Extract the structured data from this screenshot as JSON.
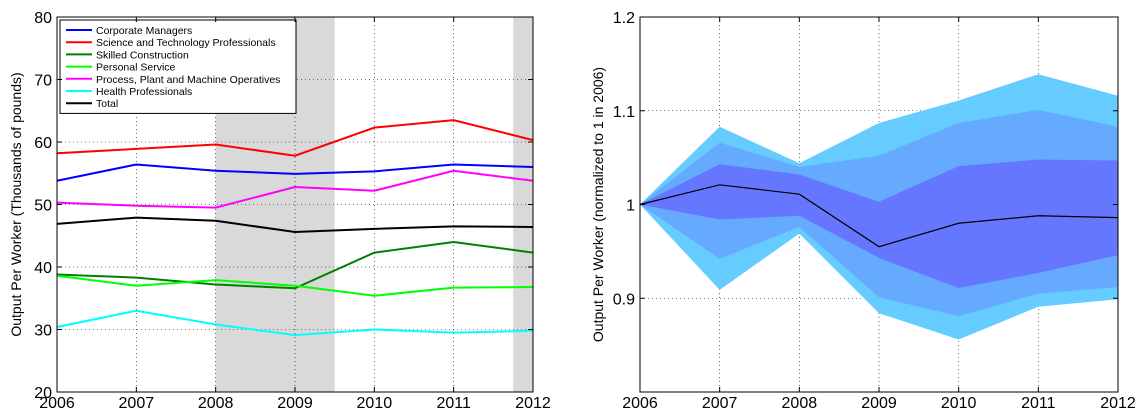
{
  "chart_data": [
    {
      "type": "line",
      "ylabel": "Output Per Worker (Thousands of pounds)",
      "xlabel": "",
      "x": [
        2006,
        2007,
        2008,
        2009,
        2010,
        2011,
        2012
      ],
      "xlim": [
        2006,
        2012
      ],
      "ylim": [
        20,
        80
      ],
      "xticks": [
        "2006",
        "2007",
        "2008",
        "2009",
        "2010",
        "2011",
        "2012"
      ],
      "yticks": [
        "20",
        "30",
        "40",
        "50",
        "60",
        "70",
        "80"
      ],
      "grid": true,
      "legend_position": "top-left",
      "shaded_periods": [
        [
          2008,
          2009.5
        ],
        [
          2011.75,
          2012
        ]
      ],
      "series": [
        {
          "name": "Corporate Managers",
          "color": "#0000ff",
          "values": [
            53.8,
            56.4,
            55.4,
            54.9,
            55.3,
            56.4,
            56.0
          ]
        },
        {
          "name": "Science and Technology Professionals",
          "color": "#ff0000",
          "values": [
            58.2,
            58.9,
            59.6,
            57.8,
            62.3,
            63.5,
            60.3
          ]
        },
        {
          "name": "Skilled Construction",
          "color": "#008000",
          "values": [
            38.8,
            38.3,
            37.2,
            36.6,
            42.3,
            44.0,
            42.3
          ]
        },
        {
          "name": "Personal Service",
          "color": "#00ff00",
          "values": [
            38.6,
            37.0,
            37.9,
            37.0,
            35.4,
            36.7,
            36.8
          ]
        },
        {
          "name": "Process, Plant and Machine Operatives",
          "color": "#ff00ff",
          "values": [
            50.3,
            49.8,
            49.5,
            52.8,
            52.2,
            55.4,
            53.8
          ]
        },
        {
          "name": "Health Professionals",
          "color": "#00ffff",
          "values": [
            30.4,
            33.0,
            30.8,
            29.1,
            30.0,
            29.5,
            29.8
          ]
        },
        {
          "name": "Total",
          "color": "#000000",
          "values": [
            46.9,
            47.9,
            47.4,
            45.6,
            46.1,
            46.5,
            46.4
          ]
        }
      ]
    },
    {
      "type": "area",
      "ylabel": "Output Per Worker (normalized to 1 in 2006)",
      "xlabel": "",
      "x": [
        2006,
        2007,
        2008,
        2009,
        2010,
        2011,
        2012
      ],
      "xlim": [
        2006,
        2012
      ],
      "ylim": [
        0.8,
        1.2
      ],
      "xticks": [
        "2006",
        "2007",
        "2008",
        "2009",
        "2010",
        "2011",
        "2012"
      ],
      "yticks": [
        "0.9",
        "1",
        "1.1",
        "1.2"
      ],
      "grid": true,
      "bands": [
        {
          "color": "#66ccff",
          "lower": [
            1.0,
            0.909,
            0.969,
            0.884,
            0.856,
            0.891,
            0.899
          ],
          "upper": [
            1.0,
            1.083,
            1.044,
            1.087,
            1.111,
            1.139,
            1.116
          ]
        },
        {
          "color": "#66aaff",
          "lower": [
            1.0,
            0.942,
            0.976,
            0.901,
            0.881,
            0.905,
            0.912
          ],
          "upper": [
            1.0,
            1.066,
            1.04,
            1.052,
            1.087,
            1.101,
            1.083
          ]
        },
        {
          "color": "#6677ff",
          "lower": [
            1.0,
            0.984,
            0.988,
            0.943,
            0.911,
            0.927,
            0.946
          ],
          "upper": [
            1.0,
            1.043,
            1.032,
            1.003,
            1.041,
            1.048,
            1.047
          ]
        }
      ],
      "series": [
        {
          "color": "#000000",
          "values": [
            1.0,
            1.021,
            1.011,
            0.955,
            0.98,
            0.988,
            0.986
          ]
        }
      ]
    }
  ]
}
